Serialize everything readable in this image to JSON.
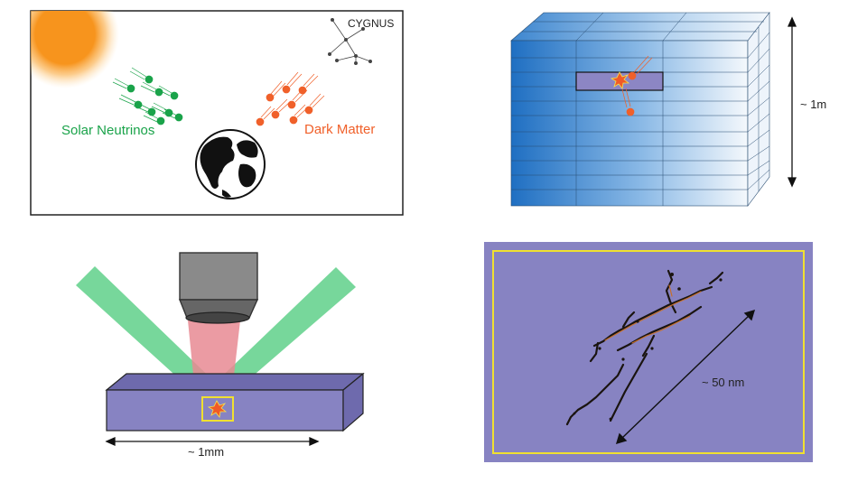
{
  "panel_sky": {
    "constellation_label": "CYGNUS",
    "neutrino_label": "Solar Neutrinos",
    "dark_matter_label": "Dark Matter",
    "neutrino_color": "#1aa34a",
    "dark_matter_color": "#f0602a",
    "sun_color": "#f7941d"
  },
  "panel_detector": {
    "height_label": "~ 1m",
    "block_color": "#2d7dcc",
    "highlight_color": "#8c86c4"
  },
  "panel_microscope": {
    "width_label": "~ 1mm",
    "laser_color": "#5fd08a",
    "beam_color": "#e88a93",
    "crystal_color": "#8783c2",
    "box_color": "#f0e030"
  },
  "panel_track": {
    "length_label": "~ 50 nm",
    "background_color": "#8783c2",
    "frame_color": "#f0e030",
    "track_color": "#c8702a"
  }
}
